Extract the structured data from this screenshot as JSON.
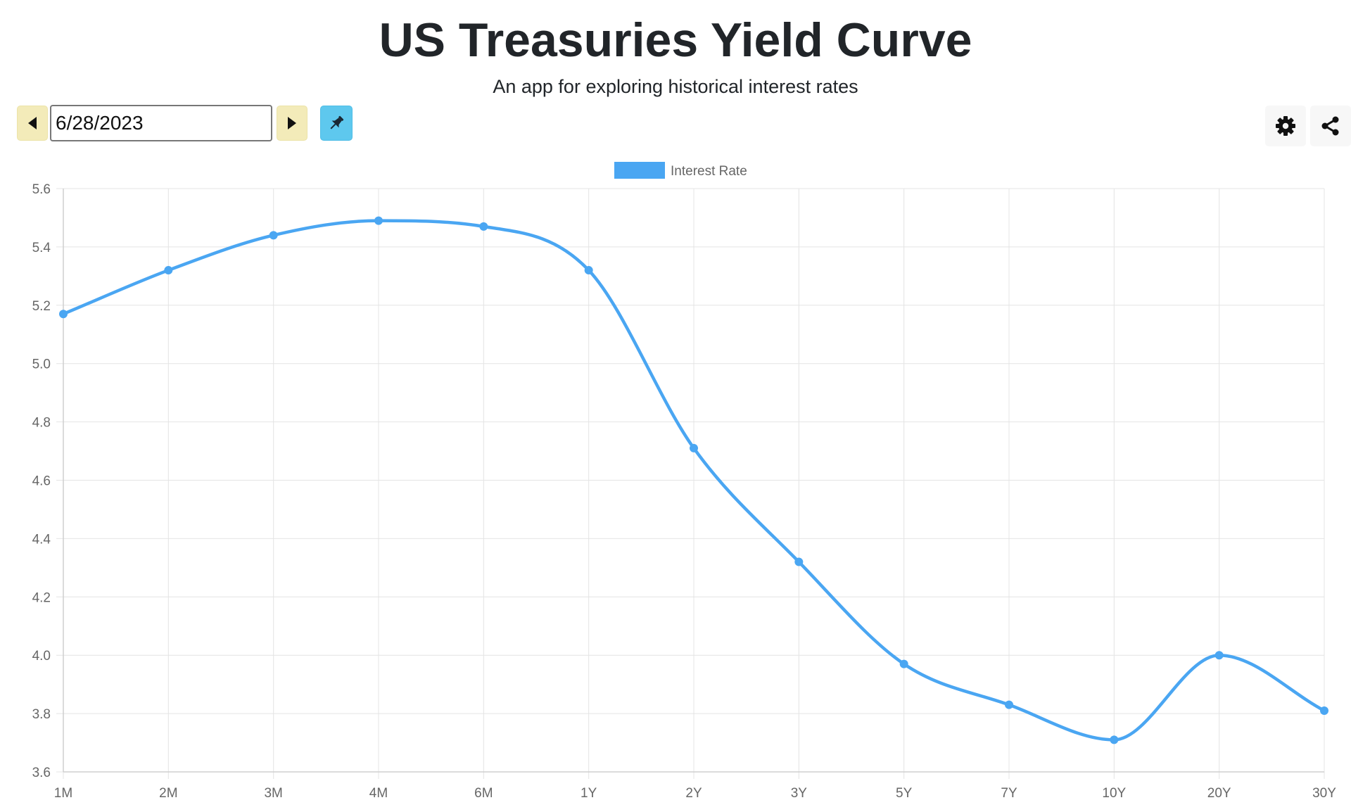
{
  "header": {
    "title": "US Treasuries Yield Curve",
    "subtitle": "An app for exploring historical interest rates"
  },
  "toolbar": {
    "prev_icon": "caret-left-icon",
    "next_icon": "caret-right-icon",
    "pin_icon": "pushpin-icon",
    "settings_icon": "gear-icon",
    "share_icon": "share-icon",
    "date_value": "6/28/2023"
  },
  "colors": {
    "line": "#4aa6f2",
    "nav_button": "#f3ebb9",
    "pin_button": "#5ec8ee",
    "grid": "#e4e4e4"
  },
  "chart_data": {
    "type": "line",
    "title": "",
    "xlabel": "",
    "ylabel": "",
    "categories": [
      "1M",
      "2M",
      "3M",
      "4M",
      "6M",
      "1Y",
      "2Y",
      "3Y",
      "5Y",
      "7Y",
      "10Y",
      "20Y",
      "30Y"
    ],
    "series": [
      {
        "name": "Interest Rate",
        "values": [
          5.17,
          5.32,
          5.44,
          5.49,
          5.47,
          5.32,
          4.71,
          4.32,
          3.97,
          3.83,
          3.71,
          4.0,
          3.81
        ]
      }
    ],
    "ylim": [
      3.6,
      5.6
    ],
    "yticks": [
      "3.6",
      "3.8",
      "4.0",
      "4.2",
      "4.4",
      "4.6",
      "4.8",
      "5.0",
      "5.2",
      "5.4",
      "5.6"
    ],
    "grid": true,
    "legend": "top-center",
    "smooth": true
  }
}
